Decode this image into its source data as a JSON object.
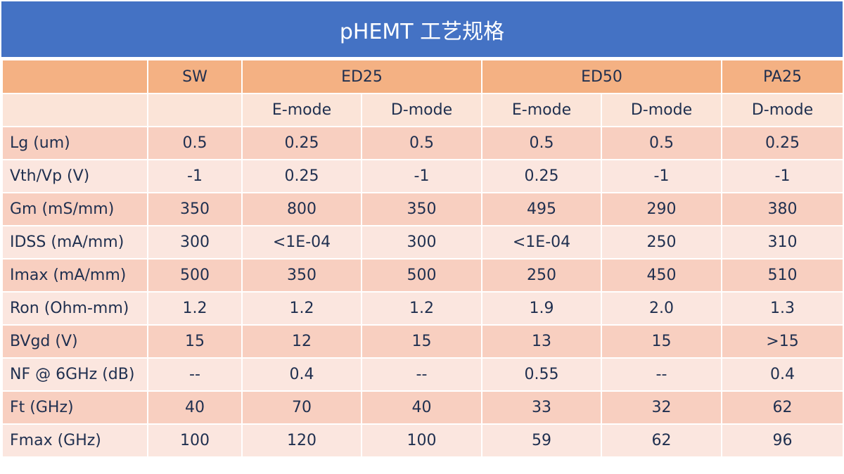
{
  "title": "pHEMT 工艺规格",
  "table": {
    "groups": {
      "sw": "SW",
      "ed25": "ED25",
      "ed50": "ED50",
      "pa25": "PA25"
    },
    "modes": [
      "",
      "E-mode",
      "D-mode",
      "E-mode",
      "D-mode",
      "D-mode"
    ],
    "rows": [
      {
        "label": "Lg (um)",
        "values": [
          "0.5",
          "0.25",
          "0.5",
          "0.5",
          "0.5",
          "0.25"
        ]
      },
      {
        "label": "Vth/Vp (V)",
        "values": [
          "-1",
          "0.25",
          "-1",
          "0.25",
          "-1",
          "-1"
        ]
      },
      {
        "label": "Gm (mS/mm)",
        "values": [
          "350",
          "800",
          "350",
          "495",
          "290",
          "380"
        ]
      },
      {
        "label": "IDSS (mA/mm)",
        "values": [
          "300",
          "<1E-04",
          "300",
          "<1E-04",
          "250",
          "310"
        ]
      },
      {
        "label": "Imax (mA/mm)",
        "values": [
          "500",
          "350",
          "500",
          "250",
          "450",
          "510"
        ]
      },
      {
        "label": "Ron (Ohm-mm)",
        "values": [
          "1.2",
          "1.2",
          "1.2",
          "1.9",
          "2.0",
          "1.3"
        ]
      },
      {
        "label": "BVgd (V)",
        "values": [
          "15",
          "12",
          "15",
          "13",
          "15",
          ">15"
        ]
      },
      {
        "label": "NF @ 6GHz (dB)",
        "values": [
          "--",
          "0.4",
          "--",
          "0.55",
          "--",
          "0.4"
        ]
      },
      {
        "label": "Ft (GHz)",
        "values": [
          "40",
          "70",
          "40",
          "33",
          "32",
          "62"
        ]
      },
      {
        "label": "Fmax (GHz)",
        "values": [
          "100",
          "120",
          "100",
          "59",
          "62",
          "96"
        ]
      }
    ]
  },
  "colors": {
    "title_bg": "#4472c4",
    "header_bg": "#f4b183",
    "row_dark": "#f8cfc0",
    "row_light": "#fbe6df",
    "text": "#1f2f4f"
  }
}
